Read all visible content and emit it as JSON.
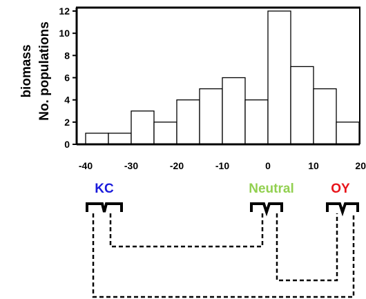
{
  "chart_data": {
    "type": "histogram",
    "title": "",
    "ylabel_lines": [
      "biomass",
      "No. populations"
    ],
    "xlabel": "",
    "xlim": [
      -40,
      20
    ],
    "ylim": [
      0,
      12
    ],
    "bin_width": 5,
    "bins": [
      {
        "start": -40,
        "end": -35,
        "count": 1
      },
      {
        "start": -35,
        "end": -30,
        "count": 1
      },
      {
        "start": -30,
        "end": -25,
        "count": 3
      },
      {
        "start": -25,
        "end": -20,
        "count": 2
      },
      {
        "start": -20,
        "end": -15,
        "count": 4
      },
      {
        "start": -15,
        "end": -10,
        "count": 5
      },
      {
        "start": -10,
        "end": -5,
        "count": 6
      },
      {
        "start": -5,
        "end": 0,
        "count": 4
      },
      {
        "start": 0,
        "end": 5,
        "count": 12
      },
      {
        "start": 5,
        "end": 10,
        "count": 7
      },
      {
        "start": 10,
        "end": 15,
        "count": 5
      },
      {
        "start": 15,
        "end": 20,
        "count": 2
      }
    ],
    "x_ticks": [
      "-40",
      "-30",
      "-20",
      "-10",
      "0",
      "10",
      "20"
    ],
    "y_ticks": [
      "0",
      "2",
      "4",
      "6",
      "8",
      "10",
      "12"
    ],
    "grid": false,
    "bar_fill": "#ffffff",
    "bar_stroke": "#000000"
  },
  "groups": [
    {
      "label": "KC",
      "color": "#1a1adb"
    },
    {
      "label": "Neutral",
      "color": "#92d050"
    },
    {
      "label": "OY",
      "color": "#e8131a"
    }
  ],
  "connectors_style": "dashed"
}
